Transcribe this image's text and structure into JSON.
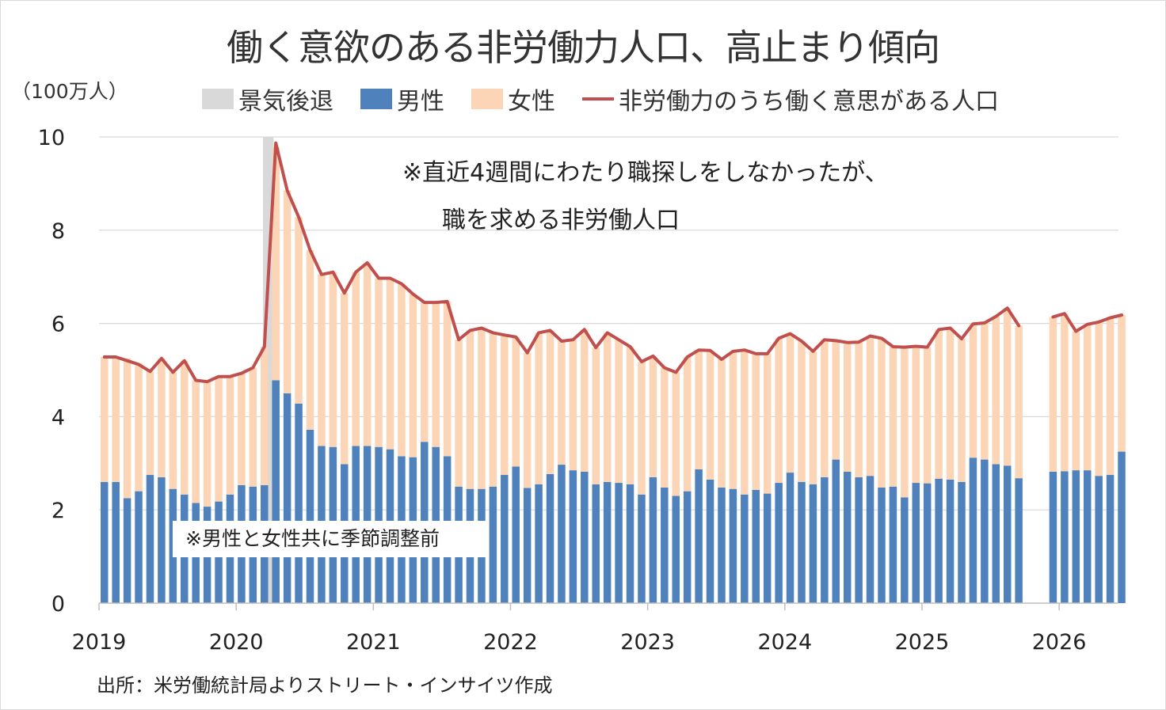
{
  "title": "働く意欲のある非労働力人口、高止まり傾向",
  "unit_label": "（100万人）",
  "legend": [
    {
      "label": "景気後退",
      "color": "#d9d9d9",
      "kind": "rect"
    },
    {
      "label": "男性",
      "color": "#4f81bd",
      "kind": "rect"
    },
    {
      "label": "女性",
      "color": "#fbd5b5",
      "kind": "rect"
    },
    {
      "label": "非労働力のうち働く意思がある人口",
      "color": "#c0504d",
      "kind": "line"
    }
  ],
  "notes": {
    "line1": "※直近4週間にわたり職探しをしなかったが、",
    "line2": "職を求める非労働人口",
    "season": "※男性と女性共に季節調整前"
  },
  "source": "出所：米労働統計局よりストリート・インサイツ作成",
  "chart_data": {
    "type": "bar",
    "stacked": true,
    "x_start": "2019-01",
    "x_labels": [
      "2019",
      "2020",
      "2021",
      "2022",
      "2023",
      "2024",
      "2025",
      "2026"
    ],
    "y_ticks": [
      "0",
      "2",
      "4",
      "6",
      "8",
      "10"
    ],
    "ylim": [
      0,
      10
    ],
    "grid": true,
    "legend_position": "top",
    "recession": {
      "start": "2020-03",
      "end": "2020-04"
    },
    "series": [
      {
        "name": "男性",
        "type": "bar",
        "color": "#4f81bd",
        "values": [
          2.6,
          2.6,
          2.25,
          2.4,
          2.75,
          2.7,
          2.45,
          2.33,
          2.15,
          2.07,
          2.18,
          2.33,
          2.53,
          2.5,
          2.53,
          4.78,
          4.5,
          4.28,
          3.72,
          3.37,
          3.35,
          2.98,
          3.37,
          3.37,
          3.35,
          3.3,
          3.15,
          3.13,
          3.46,
          3.35,
          3.15,
          2.5,
          2.45,
          2.45,
          2.5,
          2.75,
          2.93,
          2.47,
          2.55,
          2.77,
          2.97,
          2.85,
          2.82,
          2.55,
          2.6,
          2.58,
          2.55,
          2.33,
          2.7,
          2.48,
          2.3,
          2.4,
          2.87,
          2.65,
          2.48,
          2.45,
          2.33,
          2.43,
          2.35,
          2.58,
          2.8,
          2.6,
          2.55,
          2.7,
          3.08,
          2.82,
          2.7,
          2.73,
          2.48,
          2.5,
          2.27,
          2.58,
          2.57,
          2.67,
          2.65,
          2.6,
          3.12,
          3.08,
          2.98,
          2.95,
          2.68,
          null,
          null,
          2.82,
          2.83,
          2.85,
          2.85,
          2.73,
          2.75,
          3.25
        ]
      },
      {
        "name": "女性",
        "type": "bar",
        "color": "#fbd5b5",
        "values": [
          2.68,
          2.68,
          3.0,
          2.75,
          2.22,
          2.55,
          2.5,
          2.87,
          2.63,
          2.68,
          2.68,
          2.53,
          2.4,
          2.55,
          2.97,
          5.0,
          4.35,
          4.0,
          3.85,
          3.68,
          3.75,
          3.67,
          3.73,
          3.93,
          3.62,
          3.67,
          3.7,
          3.5,
          2.99,
          3.1,
          3.32,
          3.15,
          3.4,
          3.45,
          3.3,
          3.0,
          2.78,
          2.9,
          3.25,
          3.08,
          2.65,
          2.8,
          3.05,
          2.93,
          3.2,
          3.07,
          2.95,
          2.85,
          2.6,
          2.57,
          2.65,
          2.88,
          2.56,
          2.77,
          2.75,
          2.95,
          3.1,
          2.92,
          3.0,
          3.1,
          2.98,
          3.02,
          2.85,
          2.95,
          2.55,
          2.77,
          2.9,
          3.0,
          3.2,
          3.0,
          3.22,
          2.93,
          2.92,
          3.2,
          3.25,
          3.07,
          2.87,
          2.93,
          3.17,
          3.38,
          3.27,
          null,
          null,
          3.32,
          3.38,
          2.98,
          3.13,
          3.3,
          3.37,
          2.93
        ]
      },
      {
        "name": "非労働力のうち働く意思がある人口",
        "type": "line",
        "color": "#c0504d",
        "values": [
          5.28,
          5.28,
          5.2,
          5.12,
          4.97,
          5.25,
          4.95,
          5.2,
          4.78,
          4.75,
          4.86,
          4.86,
          4.93,
          5.05,
          5.5,
          9.87,
          8.85,
          8.28,
          7.57,
          7.05,
          7.1,
          6.65,
          7.1,
          7.3,
          6.97,
          6.97,
          6.85,
          6.63,
          6.45,
          6.45,
          6.47,
          5.65,
          5.85,
          5.9,
          5.8,
          5.75,
          5.71,
          5.37,
          5.8,
          5.85,
          5.62,
          5.65,
          5.87,
          5.48,
          5.8,
          5.65,
          5.5,
          5.18,
          5.3,
          5.05,
          4.95,
          5.28,
          5.43,
          5.42,
          5.23,
          5.4,
          5.43,
          5.35,
          5.35,
          5.68,
          5.78,
          5.62,
          5.4,
          5.65,
          5.63,
          5.59,
          5.6,
          5.73,
          5.68,
          5.5,
          5.49,
          5.51,
          5.49,
          5.87,
          5.9,
          5.67,
          5.99,
          6.01,
          6.15,
          6.33,
          5.95,
          null,
          null,
          6.14,
          6.21,
          5.83,
          5.98,
          6.03,
          6.12,
          6.18
        ]
      }
    ]
  }
}
